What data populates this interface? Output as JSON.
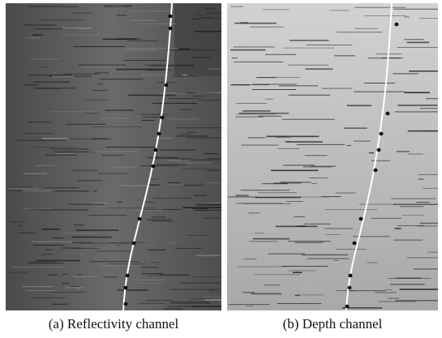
{
  "figure": {
    "panels": [
      {
        "caption": "(a) Reflectivity channel"
      },
      {
        "caption": "(b) Depth channel"
      }
    ]
  }
}
